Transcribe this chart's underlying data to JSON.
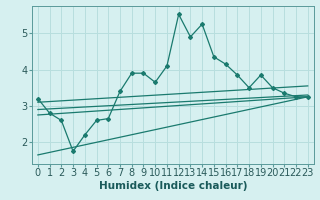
{
  "xlabel": "Humidex (Indice chaleur)",
  "bg_color": "#d6f0f0",
  "line_color": "#1a7a6e",
  "grid_color": "#b8dede",
  "xlim": [
    -0.5,
    23.5
  ],
  "ylim": [
    1.4,
    5.75
  ],
  "yticks": [
    2,
    3,
    4,
    5
  ],
  "xticks": [
    0,
    1,
    2,
    3,
    4,
    5,
    6,
    7,
    8,
    9,
    10,
    11,
    12,
    13,
    14,
    15,
    16,
    17,
    18,
    19,
    20,
    21,
    22,
    23
  ],
  "main_line_x": [
    0,
    1,
    2,
    3,
    4,
    5,
    6,
    7,
    8,
    9,
    10,
    11,
    12,
    13,
    14,
    15,
    16,
    17,
    18,
    19,
    20,
    21,
    22,
    23
  ],
  "main_line_y": [
    3.2,
    2.8,
    2.6,
    1.75,
    2.2,
    2.6,
    2.65,
    3.4,
    3.9,
    3.9,
    3.65,
    4.1,
    5.52,
    4.9,
    5.25,
    4.35,
    4.15,
    3.85,
    3.5,
    3.85,
    3.5,
    3.35,
    3.25,
    3.25
  ],
  "line1_x": [
    0,
    23
  ],
  "line1_y": [
    3.1,
    3.55
  ],
  "line2_x": [
    0,
    23
  ],
  "line2_y": [
    2.9,
    3.3
  ],
  "line3_x": [
    0,
    23
  ],
  "line3_y": [
    2.75,
    3.25
  ],
  "line4_x": [
    0,
    23
  ],
  "line4_y": [
    1.65,
    3.25
  ],
  "font_size_xlabel": 7.5,
  "font_size_ticks": 7
}
